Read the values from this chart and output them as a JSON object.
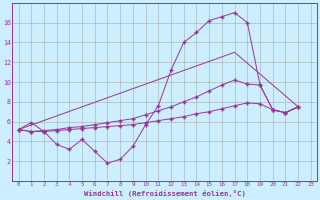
{
  "bg_color": "#cceeff",
  "grid_color": "#aabbbb",
  "line_color": "#993399",
  "marker": "+",
  "xlabel": "Windchill (Refroidissement éolien,°C)",
  "ylim": [
    0,
    18
  ],
  "xlim": [
    -0.5,
    23.5
  ],
  "yticks": [
    2,
    4,
    6,
    8,
    10,
    12,
    14,
    16
  ],
  "xticks": [
    0,
    1,
    2,
    3,
    4,
    5,
    6,
    7,
    8,
    9,
    10,
    11,
    12,
    13,
    14,
    15,
    16,
    17,
    18,
    19,
    20,
    21,
    22,
    23
  ],
  "curve1_x": [
    0,
    1,
    2,
    3,
    4,
    5,
    6,
    7,
    8,
    9,
    10,
    11,
    12,
    13,
    14,
    15,
    16,
    17,
    18,
    19,
    20,
    21,
    22
  ],
  "curve1_y": [
    5.2,
    5.9,
    5.0,
    3.7,
    3.2,
    4.2,
    3.0,
    1.8,
    2.2,
    3.5,
    5.7,
    7.6,
    11.2,
    14.0,
    15.0,
    16.2,
    16.6,
    17.0,
    16.0,
    9.7,
    7.2,
    6.9,
    7.5
  ],
  "curve2_x": [
    0,
    17,
    22
  ],
  "curve2_y": [
    5.2,
    13.0,
    7.5
  ],
  "curve3_x": [
    0,
    1,
    2,
    3,
    4,
    5,
    6,
    7,
    8,
    9,
    10,
    11,
    12,
    13,
    14,
    15,
    16,
    17,
    18,
    19,
    20,
    21,
    22
  ],
  "curve3_y": [
    5.2,
    5.0,
    5.1,
    5.2,
    5.4,
    5.5,
    5.7,
    5.9,
    6.1,
    6.3,
    6.7,
    7.1,
    7.5,
    8.0,
    8.5,
    9.1,
    9.7,
    10.2,
    9.8,
    9.7,
    7.2,
    6.9,
    7.5
  ],
  "curve4_x": [
    0,
    1,
    2,
    3,
    4,
    5,
    6,
    7,
    8,
    9,
    10,
    11,
    12,
    13,
    14,
    15,
    16,
    17,
    18,
    19,
    20,
    21,
    22
  ],
  "curve4_y": [
    5.2,
    5.0,
    5.0,
    5.1,
    5.2,
    5.3,
    5.4,
    5.5,
    5.6,
    5.7,
    5.9,
    6.1,
    6.3,
    6.5,
    6.8,
    7.0,
    7.3,
    7.6,
    7.9,
    7.8,
    7.2,
    6.9,
    7.5
  ]
}
